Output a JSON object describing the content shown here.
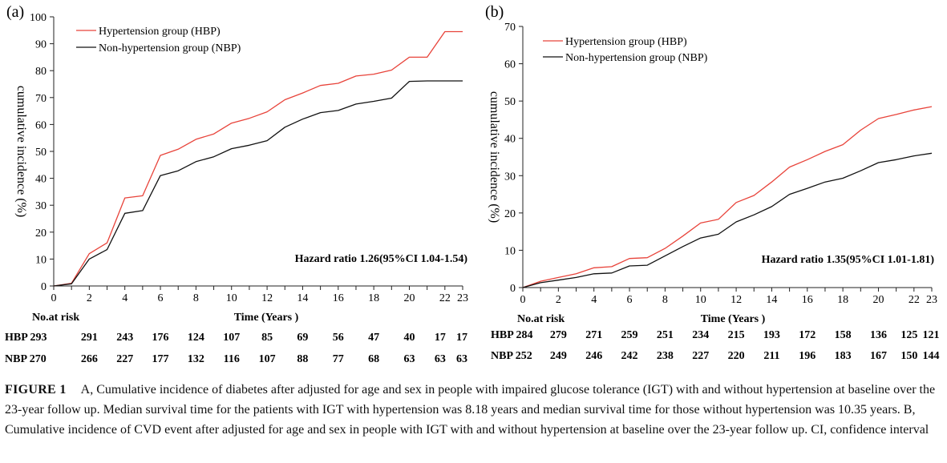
{
  "chart_data": [
    {
      "type": "line",
      "panel_label": "(a)",
      "ylabel": "cumulative incidence (%)",
      "xlabel": "Time (Years )",
      "ylim": [
        0,
        100
      ],
      "yticks": [
        0,
        10,
        20,
        30,
        40,
        50,
        60,
        70,
        80,
        90,
        100
      ],
      "xlim": [
        0,
        23
      ],
      "xticks": [
        0,
        2,
        4,
        6,
        8,
        10,
        12,
        14,
        16,
        18,
        20,
        22,
        23
      ],
      "annotation": "Hazard ratio 1.26(95%CI 1.04-1.54)",
      "series": [
        {
          "name": "Hypertension group (HBP)",
          "color": "#e8433a",
          "points": [
            [
              0,
              0
            ],
            [
              1,
              1
            ],
            [
              2,
              12
            ],
            [
              3,
              16
            ],
            [
              4,
              32.7
            ],
            [
              5,
              33.5
            ],
            [
              6,
              48.5
            ],
            [
              7,
              50.8
            ],
            [
              8,
              54.5
            ],
            [
              9,
              56.5
            ],
            [
              10,
              60.5
            ],
            [
              11,
              62.3
            ],
            [
              12,
              64.7
            ],
            [
              13,
              69.2
            ],
            [
              14,
              71.7
            ],
            [
              15,
              74.5
            ],
            [
              16,
              75.3
            ],
            [
              17,
              78
            ],
            [
              18,
              78.7
            ],
            [
              19,
              80.2
            ],
            [
              20,
              85
            ],
            [
              21,
              85
            ],
            [
              22,
              94.5
            ],
            [
              23,
              94.5
            ]
          ]
        },
        {
          "name": "Non-hypertension group (NBP)",
          "color": "#111111",
          "points": [
            [
              0,
              0
            ],
            [
              1,
              0.8
            ],
            [
              2,
              10
            ],
            [
              3,
              13.5
            ],
            [
              4,
              27
            ],
            [
              5,
              28
            ],
            [
              6,
              41
            ],
            [
              7,
              42.8
            ],
            [
              8,
              46.2
            ],
            [
              9,
              48
            ],
            [
              10,
              51
            ],
            [
              11,
              52.3
            ],
            [
              12,
              54
            ],
            [
              13,
              59
            ],
            [
              14,
              62
            ],
            [
              15,
              64.4
            ],
            [
              16,
              65.2
            ],
            [
              17,
              67.6
            ],
            [
              18,
              68.6
            ],
            [
              19,
              69.8
            ],
            [
              20,
              76
            ],
            [
              21,
              76.2
            ],
            [
              22,
              76.2
            ],
            [
              23,
              76.2
            ]
          ]
        }
      ],
      "risk_table": {
        "header": "No.at risk",
        "rows": [
          {
            "label": "HBP 293",
            "values": [
              "291",
              "243",
              "176",
              "124",
              "107",
              "85",
              "69",
              "56",
              "47",
              "40",
              "17",
              "17"
            ]
          },
          {
            "label": "NBP 270",
            "values": [
              "266",
              "227",
              "177",
              "132",
              "116",
              "107",
              "88",
              "77",
              "68",
              "63",
              "63",
              "63"
            ]
          }
        ]
      }
    },
    {
      "type": "line",
      "panel_label": "(b)",
      "ylabel": "cumulative incidence (%)",
      "xlabel": "Time (Years )",
      "ylim": [
        0,
        70
      ],
      "yticks": [
        0,
        10,
        20,
        30,
        40,
        50,
        60,
        70
      ],
      "xlim": [
        0,
        23
      ],
      "xticks": [
        0,
        2,
        4,
        6,
        8,
        10,
        12,
        14,
        16,
        18,
        20,
        22,
        23
      ],
      "annotation": "Hazard ratio 1.35(95%CI 1.01-1.81)",
      "series": [
        {
          "name": "Hypertension group (HBP)",
          "color": "#e8433a",
          "points": [
            [
              0,
              0
            ],
            [
              1,
              1.7
            ],
            [
              2,
              2.7
            ],
            [
              3,
              3.7
            ],
            [
              4,
              5.3
            ],
            [
              5,
              5.6
            ],
            [
              6,
              7.8
            ],
            [
              7,
              8
            ],
            [
              8,
              10.5
            ],
            [
              9,
              13.8
            ],
            [
              10,
              17.3
            ],
            [
              11,
              18.3
            ],
            [
              12,
              22.8
            ],
            [
              13,
              24.7
            ],
            [
              14,
              28.3
            ],
            [
              15,
              32.3
            ],
            [
              16,
              34.3
            ],
            [
              17,
              36.5
            ],
            [
              18,
              38.3
            ],
            [
              19,
              42.2
            ],
            [
              20,
              45.3
            ],
            [
              21,
              46.4
            ],
            [
              22,
              47.6
            ],
            [
              23,
              48.5
            ]
          ]
        },
        {
          "name": "Non-hypertension group (NBP)",
          "color": "#111111",
          "points": [
            [
              0,
              0
            ],
            [
              1,
              1.3
            ],
            [
              2,
              2
            ],
            [
              3,
              2.7
            ],
            [
              4,
              3.7
            ],
            [
              5,
              3.9
            ],
            [
              6,
              5.8
            ],
            [
              7,
              6
            ],
            [
              8,
              8.5
            ],
            [
              9,
              11
            ],
            [
              10,
              13.3
            ],
            [
              11,
              14.3
            ],
            [
              12,
              17.6
            ],
            [
              13,
              19.5
            ],
            [
              14,
              21.7
            ],
            [
              15,
              25
            ],
            [
              16,
              26.6
            ],
            [
              17,
              28.3
            ],
            [
              18,
              29.3
            ],
            [
              19,
              31.3
            ],
            [
              20,
              33.5
            ],
            [
              21,
              34.3
            ],
            [
              22,
              35.3
            ],
            [
              23,
              36
            ]
          ]
        }
      ],
      "risk_table": {
        "header": "No.at risk",
        "rows": [
          {
            "label": "HBP 284",
            "values": [
              "279",
              "271",
              "259",
              "251",
              "234",
              "215",
              "193",
              "172",
              "158",
              "136",
              "125",
              "121"
            ]
          },
          {
            "label": "NBP 252",
            "values": [
              "249",
              "246",
              "242",
              "238",
              "227",
              "220",
              "211",
              "196",
              "183",
              "167",
              "150",
              "144"
            ]
          }
        ]
      }
    }
  ],
  "caption": {
    "label": "FIGURE 1",
    "text": "A, Cumulative incidence of diabetes after adjusted for age and sex in people with impaired glucose tolerance (IGT) with and without hypertension at baseline over the 23-year follow up. Median survival time for the patients with IGT with hypertension was 8.18 years and median survival time for those without hypertension was 10.35 years. B, Cumulative incidence of CVD event after adjusted for age and sex in people with IGT with and without hypertension at baseline over the 23-year follow up. CI, confidence interval"
  }
}
